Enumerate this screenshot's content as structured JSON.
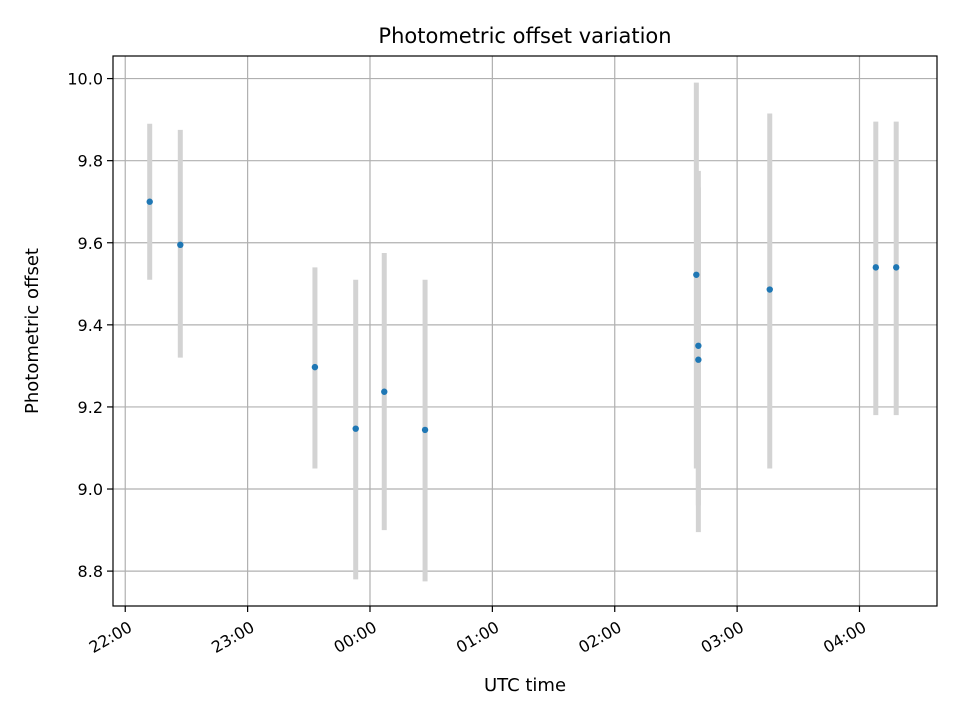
{
  "chart_data": {
    "type": "scatter",
    "title": "Photometric offset variation",
    "xlabel": "UTC time",
    "ylabel": "Photometric offset",
    "x_ticks": [
      "22:00",
      "23:00",
      "00:00",
      "01:00",
      "02:00",
      "03:00",
      "04:00"
    ],
    "y_ticks": [
      "8.8",
      "9.0",
      "9.2",
      "9.4",
      "9.6",
      "9.8",
      "10.0"
    ],
    "xlim": [
      "21:54",
      "04:38"
    ],
    "ylim": [
      8.715,
      10.055
    ],
    "grid": true,
    "colors": {
      "points": "#1f77b4",
      "errorbars": "#d3d3d3",
      "grid": "#b0b0b0"
    },
    "series": [
      {
        "points": [
          {
            "x": "22:12",
            "y": 9.7,
            "yerr_low": 9.51,
            "yerr_high": 9.89
          },
          {
            "x": "22:27",
            "y": 9.595,
            "yerr_low": 9.32,
            "yerr_high": 9.875
          },
          {
            "x": "23:33",
            "y": 9.297,
            "yerr_low": 9.05,
            "yerr_high": 9.54
          },
          {
            "x": "23:53",
            "y": 9.147,
            "yerr_low": 8.78,
            "yerr_high": 9.51
          },
          {
            "x": "00:07",
            "y": 9.237,
            "yerr_low": 8.9,
            "yerr_high": 9.575
          },
          {
            "x": "00:27",
            "y": 9.144,
            "yerr_low": 8.775,
            "yerr_high": 9.51
          },
          {
            "x": "02:40",
            "y": 9.522,
            "yerr_low": 9.05,
            "yerr_high": 9.99
          },
          {
            "x": "02:41",
            "y": 9.349,
            "yerr_low": 8.96,
            "yerr_high": 9.775
          },
          {
            "x": "02:41",
            "y": 9.315,
            "yerr_low": 8.895,
            "yerr_high": 9.735
          },
          {
            "x": "03:16",
            "y": 9.486,
            "yerr_low": 9.05,
            "yerr_high": 9.915
          },
          {
            "x": "04:08",
            "y": 9.54,
            "yerr_low": 9.18,
            "yerr_high": 9.895
          },
          {
            "x": "04:18",
            "y": 9.54,
            "yerr_low": 9.18,
            "yerr_high": 9.895
          }
        ]
      }
    ]
  }
}
